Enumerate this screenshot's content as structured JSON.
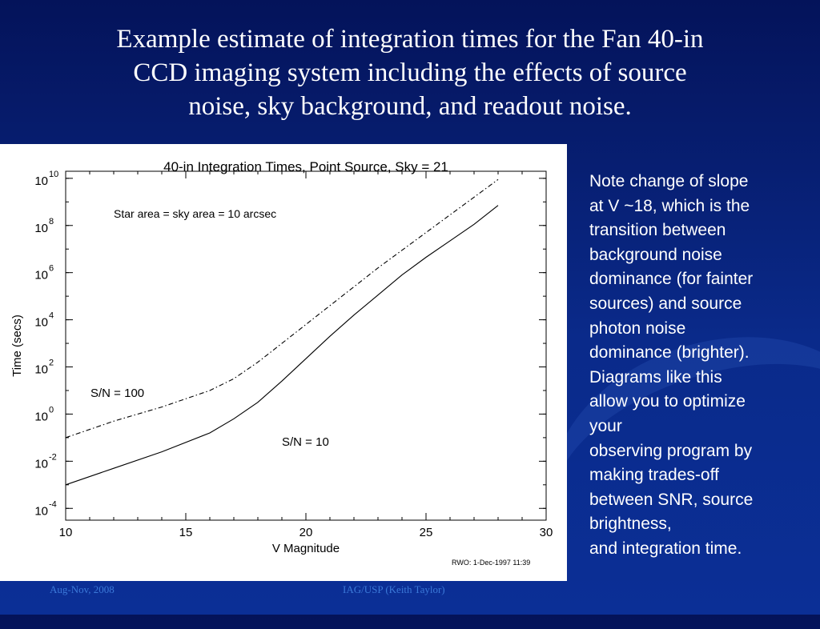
{
  "slide": {
    "title_lines": [
      "Example estimate of integration times for the Fan 40-in",
      "CCD imaging system including the effects of  source",
      "noise, sky background, and readout noise."
    ],
    "note_lines": [
      "Note change of slope",
      "at V  ~18, which is the",
      "transition between",
      "background noise",
      "dominance (for fainter",
      "sources) and source",
      "photon noise",
      "dominance (brighter).",
      "Diagrams like this",
      "allow you to optimize",
      "your",
      "observing program by",
      "making trades-off",
      "between SNR, source",
      "brightness,",
      "and integration time."
    ],
    "footer_left": "Aug-Nov, 2008",
    "footer_center": "IAG/USP (Keith Taylor)",
    "background_colors": [
      "#04135a",
      "#0b2f96"
    ]
  },
  "chart_data": {
    "type": "line",
    "title": "40-in Integration Times, Point Source, Sky = 21",
    "xlabel": "V Magnitude",
    "ylabel": "Time (secs)",
    "xlim": [
      10,
      30
    ],
    "ylim_log10": [
      -4.5,
      10.3
    ],
    "yscale": "log",
    "x_ticks": [
      "10",
      "15",
      "20",
      "25",
      "30"
    ],
    "y_ticks": [
      {
        "base": "10",
        "exp": "10",
        "log": 10
      },
      {
        "base": "10",
        "exp": "8",
        "log": 8
      },
      {
        "base": "10",
        "exp": "6",
        "log": 6
      },
      {
        "base": "10",
        "exp": "4",
        "log": 4
      },
      {
        "base": "10",
        "exp": "2",
        "log": 2
      },
      {
        "base": "10",
        "exp": "0",
        "log": 0
      },
      {
        "base": "10",
        "exp": "-2",
        "log": -2
      },
      {
        "base": "10",
        "exp": "-4",
        "log": -4
      }
    ],
    "annotations": {
      "area": "Star area = sky area = 10 arcsec",
      "sn100": "S/N = 100",
      "sn10": "S/N = 10",
      "credit": "RWO:       1-Dec-1997 11:39"
    },
    "grid": false,
    "series": [
      {
        "label": "S/N = 100",
        "style": "dash-dot",
        "points_log10": [
          [
            10,
            -1.0
          ],
          [
            12,
            -0.3
          ],
          [
            14,
            0.3
          ],
          [
            16,
            1.0
          ],
          [
            17,
            1.5
          ],
          [
            18,
            2.2
          ],
          [
            19,
            3.0
          ],
          [
            20,
            3.8
          ],
          [
            21,
            4.6
          ],
          [
            22,
            5.4
          ],
          [
            23,
            6.2
          ],
          [
            24,
            6.95
          ],
          [
            25,
            7.7
          ],
          [
            26,
            8.45
          ],
          [
            27,
            9.2
          ],
          [
            28,
            9.95
          ]
        ]
      },
      {
        "label": "S/N = 10",
        "style": "solid",
        "points_log10": [
          [
            10,
            -3.0
          ],
          [
            12,
            -2.3
          ],
          [
            14,
            -1.6
          ],
          [
            16,
            -0.8
          ],
          [
            17,
            -0.2
          ],
          [
            18,
            0.5
          ],
          [
            19,
            1.4
          ],
          [
            20,
            2.35
          ],
          [
            21,
            3.3
          ],
          [
            22,
            4.2
          ],
          [
            23,
            5.05
          ],
          [
            24,
            5.9
          ],
          [
            25,
            6.65
          ],
          [
            26,
            7.35
          ],
          [
            27,
            8.05
          ],
          [
            28,
            8.85
          ]
        ]
      }
    ]
  }
}
